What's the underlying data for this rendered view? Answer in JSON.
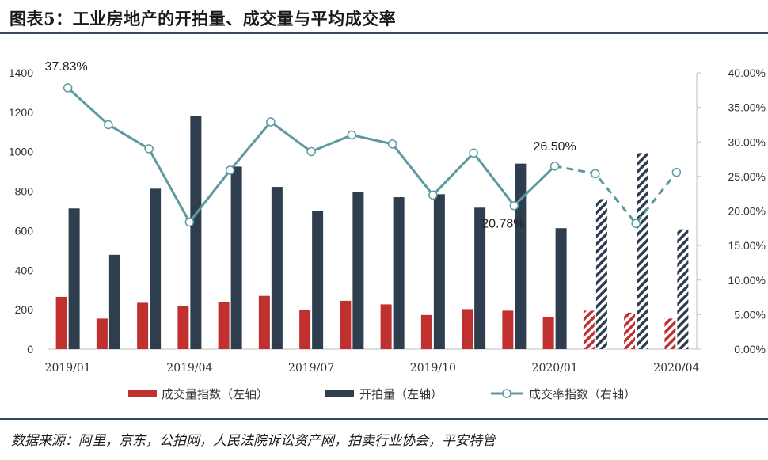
{
  "header": {
    "title": "图表5：工业房地产的开拍量、成交量与平均成交率"
  },
  "footer": {
    "source": "数据来源：阿里，京东，公拍网，人民法院诉讼资产网，拍卖行业协会，平安特管"
  },
  "chart_data": {
    "type": "bar",
    "categories": [
      "2019/01",
      "2019/02",
      "2019/03",
      "2019/04",
      "2019/05",
      "2019/06",
      "2019/07",
      "2019/08",
      "2019/09",
      "2019/10",
      "2019/11",
      "2019/12",
      "2020/01",
      "2020/02",
      "2020/03",
      "2020/04"
    ],
    "x_tick_labels": [
      "2019/01",
      "2019/04",
      "2019/07",
      "2019/10",
      "2020/01",
      "2020/04"
    ],
    "x_tick_indices": [
      0,
      3,
      6,
      9,
      12,
      15
    ],
    "ylim_left": [
      0,
      1400
    ],
    "ylim_right": [
      0,
      40
    ],
    "yticks_left": [
      "0",
      "200",
      "400",
      "600",
      "800",
      "1000",
      "1200",
      "1400"
    ],
    "yticks_right": [
      "0.00%",
      "5.00%",
      "10.00%",
      "15.00%",
      "20.00%",
      "25.00%",
      "30.00%",
      "35.00%",
      "40.00%"
    ],
    "series": [
      {
        "name": "成交量指数（左轴）",
        "axis": "left",
        "kind": "bar",
        "color": "#c0302e",
        "values": [
          265,
          155,
          235,
          220,
          238,
          270,
          198,
          245,
          227,
          173,
          203,
          195,
          162,
          195,
          185,
          155
        ],
        "hatched_from_index": 13
      },
      {
        "name": "开拍量（左轴）",
        "axis": "left",
        "kind": "bar",
        "color": "#2e3e4e",
        "values": [
          713,
          478,
          813,
          1183,
          925,
          822,
          698,
          795,
          770,
          785,
          717,
          940,
          613,
          760,
          993,
          607
        ],
        "hatched_from_index": 13
      },
      {
        "name": "成交率指数（右轴）",
        "axis": "right",
        "kind": "line",
        "color": "#5b9aa0",
        "values": [
          37.83,
          32.5,
          29.0,
          18.4,
          25.9,
          32.9,
          28.6,
          31.0,
          29.7,
          22.3,
          28.4,
          20.78,
          26.5,
          25.4,
          18.2,
          25.6
        ],
        "dashed_from_index": 12
      }
    ],
    "annotations": [
      {
        "index": 0,
        "text": "37.83%"
      },
      {
        "index": 11,
        "text": "20.78%"
      },
      {
        "index": 12,
        "text": "26.50%"
      }
    ],
    "grid": false,
    "legend_position": "bottom"
  }
}
